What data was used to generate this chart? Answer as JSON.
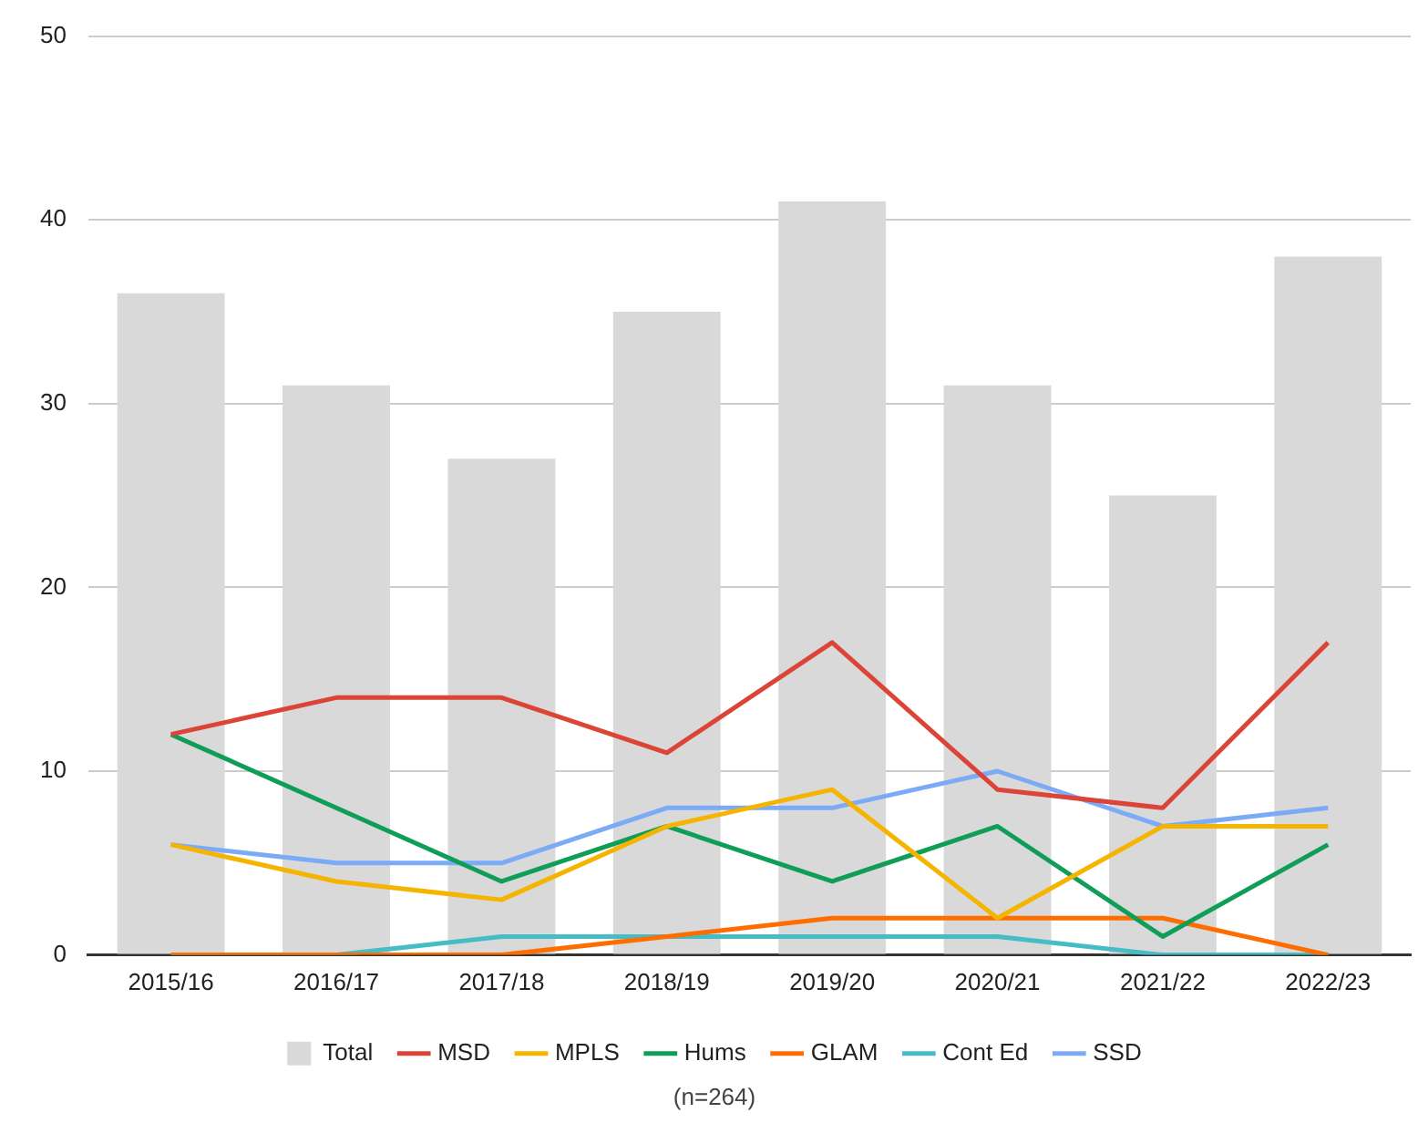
{
  "chart_data": {
    "type": "bar",
    "categories": [
      "2015/16",
      "2016/17",
      "2017/18",
      "2018/19",
      "2019/20",
      "2020/21",
      "2021/22",
      "2022/23"
    ],
    "series": [
      {
        "name": "Total",
        "color": "#d9d9d9",
        "values": [
          36,
          31,
          27,
          35,
          41,
          31,
          25,
          38
        ]
      },
      {
        "name": "MSD",
        "type": "line",
        "color": "#db4437",
        "values": [
          12,
          14,
          14,
          11,
          17,
          9,
          8,
          17
        ]
      },
      {
        "name": "MPLS",
        "type": "line",
        "color": "#f4b400",
        "values": [
          6,
          4,
          3,
          7,
          9,
          2,
          7,
          7
        ]
      },
      {
        "name": "Hums",
        "type": "line",
        "color": "#0f9d58",
        "values": [
          12,
          8,
          4,
          7,
          4,
          7,
          1,
          6
        ]
      },
      {
        "name": "GLAM",
        "type": "line",
        "color": "#ff6d00",
        "values": [
          0,
          0,
          0,
          1,
          2,
          2,
          2,
          0
        ]
      },
      {
        "name": "Cont Ed",
        "type": "line",
        "color": "#46bdc6",
        "values": [
          0,
          0,
          1,
          1,
          1,
          1,
          0,
          0
        ]
      },
      {
        "name": "SSD",
        "type": "line",
        "color": "#7baaf7",
        "values": [
          6,
          5,
          5,
          8,
          8,
          10,
          7,
          8
        ]
      }
    ],
    "ylim": [
      0,
      50
    ],
    "yticks": [
      0,
      10,
      20,
      30,
      40,
      50
    ],
    "grid": "y",
    "legend": "bottom",
    "marker": "none",
    "annotations": [
      "(n=264)"
    ]
  }
}
